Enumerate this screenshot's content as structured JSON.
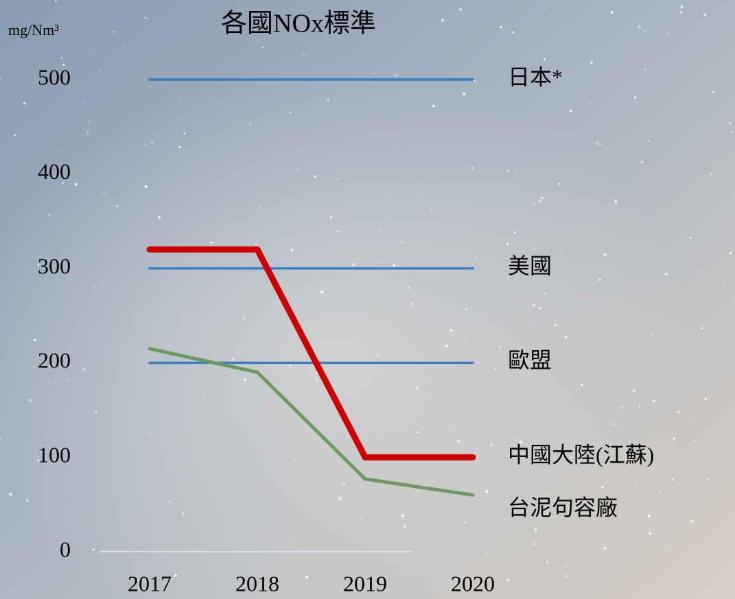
{
  "chart_data": {
    "type": "line",
    "title": "各國NOx標準",
    "y_label": "mg/Nm³",
    "categories": [
      "2017",
      "2018",
      "2019",
      "2020"
    ],
    "series": [
      {
        "name": "日本*",
        "color": "#3b7cc4",
        "values": [
          500,
          500,
          500,
          500
        ]
      },
      {
        "name": "美國",
        "color": "#3b7cc4",
        "values": [
          300,
          300,
          300,
          300
        ]
      },
      {
        "name": "歐盟",
        "color": "#3b7cc4",
        "values": [
          200,
          200,
          200,
          200
        ]
      },
      {
        "name": "中國大陸(江蘇)",
        "color": "#cc0000",
        "values": [
          320,
          320,
          100,
          100
        ]
      },
      {
        "name": "台泥句容廠",
        "color": "#6f985f",
        "values": [
          215,
          190,
          77,
          60
        ]
      }
    ],
    "ylim": [
      0,
      500
    ],
    "yticks": [
      0,
      100,
      200,
      300,
      400,
      500
    ],
    "grid": false
  }
}
